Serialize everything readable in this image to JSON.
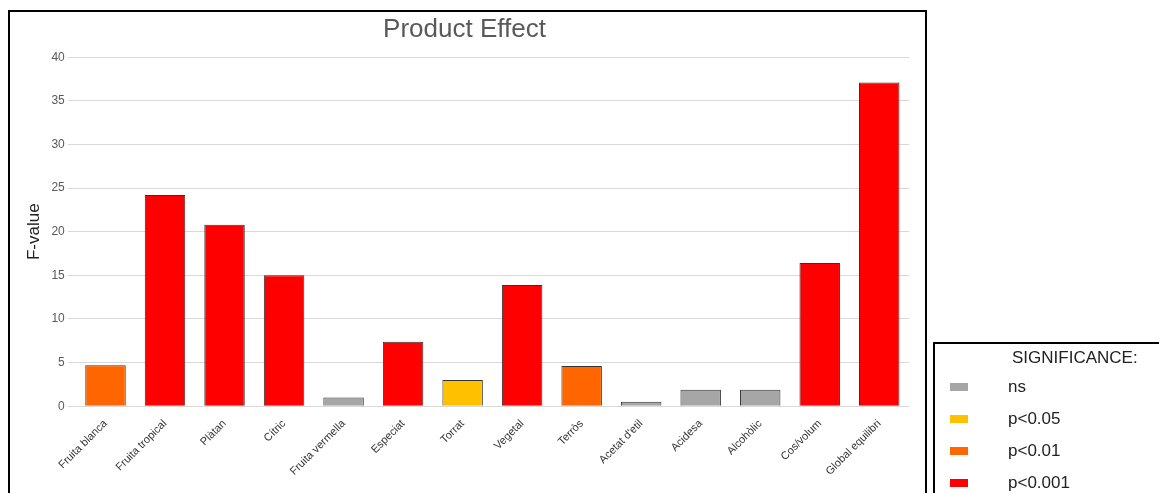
{
  "chart_data": {
    "type": "bar",
    "title": "Product Effect",
    "ylabel": "F-value",
    "legend_title": "SIGNIFICANCE:",
    "categories": [
      "Fruita blanca",
      "Fruita tropical",
      "Plàtan",
      "Cítric",
      "Fruita vermella",
      "Especiat",
      "Torrat",
      "Vegetal",
      "Terròs",
      "Acetat d'etil",
      "Acidesa",
      "Alcohòlic",
      "Cos/volum",
      "Global equilibri"
    ],
    "series": [
      {
        "name": "ns",
        "color": "#a6a6a6",
        "values": [
          null,
          null,
          null,
          null,
          1.0,
          null,
          null,
          null,
          null,
          0.5,
          1.9,
          1.9,
          null,
          null
        ]
      },
      {
        "name": "p<0.05",
        "color": "#ffc000",
        "values": [
          null,
          null,
          null,
          null,
          null,
          null,
          3.0,
          null,
          null,
          null,
          null,
          null,
          null,
          null
        ]
      },
      {
        "name": "p<0.01",
        "color": "#ff6600",
        "values": [
          4.7,
          null,
          null,
          null,
          null,
          null,
          null,
          null,
          4.6,
          null,
          null,
          null,
          null,
          null
        ]
      },
      {
        "name": "p<0.001",
        "color": "#ff0000",
        "values": [
          null,
          24.2,
          20.8,
          15.0,
          null,
          7.4,
          null,
          13.9,
          null,
          null,
          null,
          null,
          16.4,
          37.1
        ]
      }
    ],
    "ylim": [
      0,
      40
    ],
    "yticks": [
      0,
      5,
      10,
      15,
      20,
      25,
      30,
      35,
      40
    ],
    "grid": "y",
    "legend": "bottom right"
  }
}
